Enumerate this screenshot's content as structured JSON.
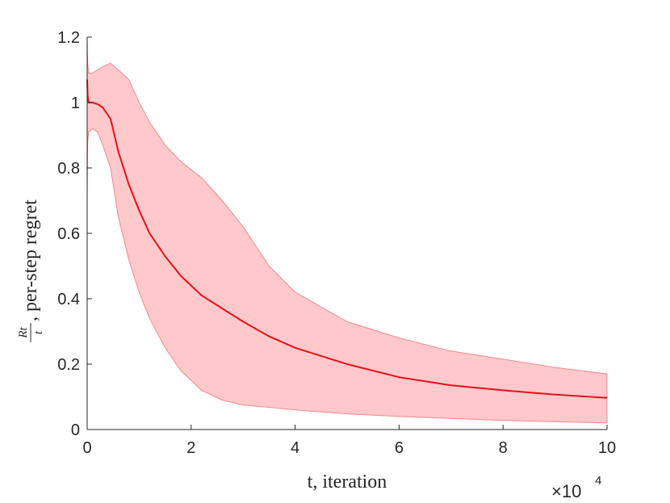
{
  "chart_data": {
    "type": "line",
    "title": "",
    "xlabel": "t, iteration",
    "ylabel": {
      "fraction_numerator": "Rt",
      "fraction_denominator": "t",
      "text": ", per-step regret"
    },
    "x_multiplier": {
      "base": "×10",
      "exponent": "4"
    },
    "xlim": [
      0,
      10
    ],
    "ylim": [
      0,
      1.2
    ],
    "x_ticks": [
      0,
      2,
      4,
      6,
      8,
      10
    ],
    "x_tick_labels": [
      "0",
      "2",
      "4",
      "6",
      "8",
      "10"
    ],
    "y_ticks": [
      0,
      0.2,
      0.4,
      0.6,
      0.8,
      1,
      1.2
    ],
    "y_tick_labels": [
      "0",
      "0.2",
      "0.4",
      "0.6",
      "0.8",
      "1",
      "1.2"
    ],
    "grid": false,
    "colors": {
      "line": "#e8101a",
      "band_fill": "#ffc9cb",
      "band_edge": "#f2898d",
      "axis": "#262626"
    },
    "series": [
      {
        "x": [
          0,
          0.01,
          0.03,
          0.1,
          0.2,
          0.3,
          0.45,
          0.6,
          0.8,
          1.0,
          1.2,
          1.5,
          1.8,
          2.2,
          2.6,
          3.0,
          3.5,
          4.0,
          5.0,
          6.0,
          7.0,
          8.0,
          9.0,
          10.0
        ],
        "values": [
          1.07,
          1.02,
          1.0,
          1.0,
          0.995,
          0.985,
          0.95,
          0.85,
          0.75,
          0.67,
          0.6,
          0.53,
          0.47,
          0.41,
          0.37,
          0.33,
          0.285,
          0.25,
          0.2,
          0.16,
          0.135,
          0.12,
          0.107,
          0.097
        ],
        "band_upper": [
          1.2,
          1.12,
          1.09,
          1.09,
          1.1,
          1.11,
          1.12,
          1.1,
          1.07,
          1.0,
          0.94,
          0.87,
          0.82,
          0.77,
          0.7,
          0.62,
          0.5,
          0.42,
          0.33,
          0.28,
          0.24,
          0.215,
          0.19,
          0.17
        ],
        "band_lower": [
          0.72,
          0.88,
          0.91,
          0.92,
          0.91,
          0.87,
          0.8,
          0.65,
          0.52,
          0.42,
          0.34,
          0.25,
          0.18,
          0.12,
          0.09,
          0.075,
          0.068,
          0.06,
          0.048,
          0.04,
          0.034,
          0.028,
          0.024,
          0.02
        ]
      }
    ]
  }
}
